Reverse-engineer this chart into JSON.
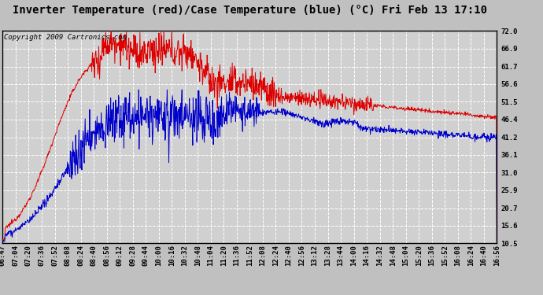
{
  "title": "Inverter Temperature (red)/Case Temperature (blue) (°C) Fri Feb 13 17:10",
  "copyright": "Copyright 2009 Cartronics.com",
  "background_color": "#d0d0d0",
  "red_color": "#dd0000",
  "blue_color": "#0000cc",
  "yticks": [
    10.5,
    15.6,
    20.7,
    25.9,
    31.0,
    36.1,
    41.2,
    46.4,
    51.5,
    56.6,
    61.7,
    66.9,
    72.0
  ],
  "ylim": [
    10.5,
    72.0
  ],
  "xtick_labels": [
    "06:47",
    "07:04",
    "07:20",
    "07:36",
    "07:52",
    "08:08",
    "08:24",
    "08:40",
    "08:56",
    "09:12",
    "09:28",
    "09:44",
    "10:00",
    "10:16",
    "10:32",
    "10:48",
    "11:04",
    "11:20",
    "11:36",
    "11:52",
    "12:08",
    "12:24",
    "12:40",
    "12:56",
    "13:12",
    "13:28",
    "13:44",
    "14:00",
    "14:16",
    "14:32",
    "14:48",
    "15:04",
    "15:20",
    "15:36",
    "15:52",
    "16:08",
    "16:24",
    "16:40",
    "16:56"
  ],
  "title_fontsize": 10,
  "copyright_fontsize": 6.5,
  "tick_fontsize": 6.5,
  "grid_color": "#ffffff",
  "outer_bg": "#c0c0c0"
}
